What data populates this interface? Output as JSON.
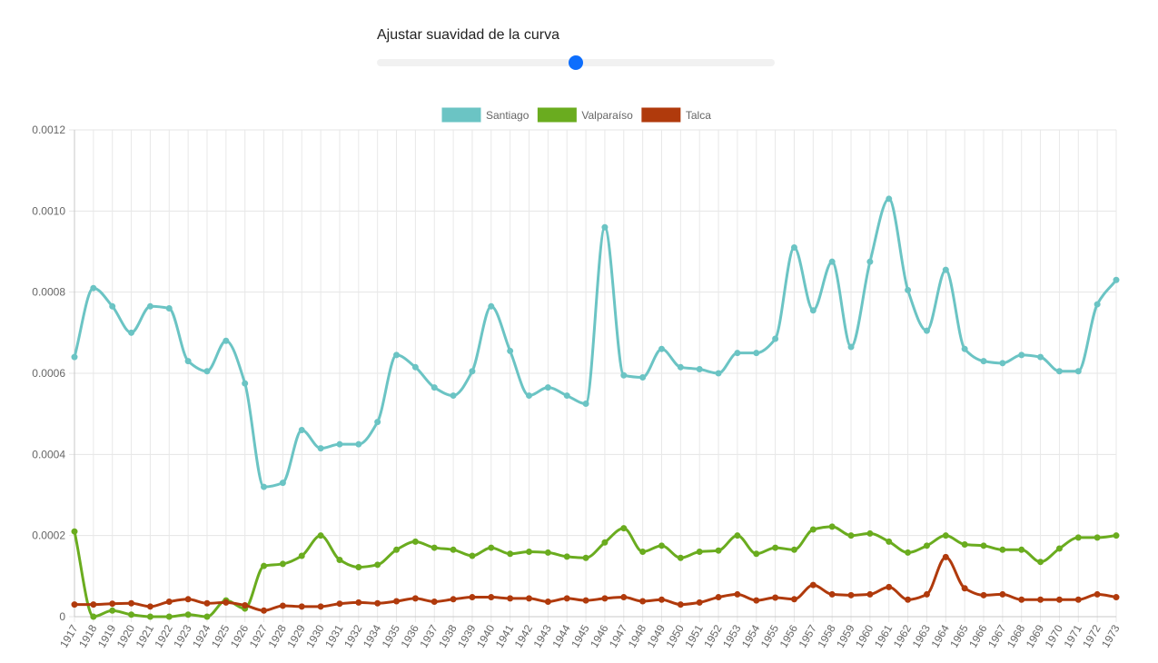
{
  "slider": {
    "label": "Ajustar suavidad de la curva",
    "value": 0.5,
    "thumb_color": "#0d6efd",
    "track_color": "#f1f1f1"
  },
  "chart_data": {
    "type": "line",
    "smoothing": "spline",
    "legend_position": "top-center",
    "grid": true,
    "ylim": [
      0,
      0.0012
    ],
    "y_ticks": [
      "0.0012",
      "0.0010",
      "0.0008",
      "0.0006",
      "0.0004",
      "0.0002",
      "0"
    ],
    "x": [
      "1917",
      "1918",
      "1919",
      "1920",
      "1921",
      "1922",
      "1923",
      "1924",
      "1925",
      "1926",
      "1927",
      "1928",
      "1929",
      "1930",
      "1931",
      "1932",
      "1934",
      "1935",
      "1936",
      "1937",
      "1938",
      "1939",
      "1940",
      "1941",
      "1942",
      "1943",
      "1944",
      "1945",
      "1946",
      "1947",
      "1948",
      "1949",
      "1950",
      "1951",
      "1952",
      "1953",
      "1954",
      "1955",
      "1956",
      "1957",
      "1958",
      "1959",
      "1960",
      "1961",
      "1962",
      "1963",
      "1964",
      "1965",
      "1966",
      "1967",
      "1968",
      "1969",
      "1970",
      "1971",
      "1972",
      "1973"
    ],
    "series": [
      {
        "name": "Santiago",
        "color": "#6bc4c4",
        "values": [
          0.00064,
          0.00081,
          0.000765,
          0.0007,
          0.000765,
          0.00076,
          0.00063,
          0.000605,
          0.00068,
          0.000575,
          0.00032,
          0.00033,
          0.00046,
          0.000415,
          0.000425,
          0.000425,
          0.00048,
          0.000645,
          0.000615,
          0.000565,
          0.000545,
          0.000605,
          0.000765,
          0.000655,
          0.000545,
          0.000565,
          0.000545,
          0.000525,
          0.00096,
          0.000595,
          0.00059,
          0.00066,
          0.000615,
          0.00061,
          0.0006,
          0.00065,
          0.00065,
          0.000685,
          0.00091,
          0.000755,
          0.000875,
          0.000665,
          0.000875,
          0.00103,
          0.000805,
          0.000705,
          0.000855,
          0.00066,
          0.00063,
          0.000625,
          0.000645,
          0.00064,
          0.000605,
          0.000605,
          0.00077,
          0.00083
        ]
      },
      {
        "name": "Valparaíso",
        "color": "#6aac1f",
        "values": [
          0.00021,
          0.0,
          1.5e-05,
          5e-06,
          0.0,
          0.0,
          5e-06,
          0.0,
          4e-05,
          2e-05,
          0.000125,
          0.00013,
          0.00015,
          0.0002,
          0.00014,
          0.000122,
          0.000128,
          0.000165,
          0.000185,
          0.00017,
          0.000165,
          0.00015,
          0.00017,
          0.000155,
          0.00016,
          0.000158,
          0.000148,
          0.000145,
          0.000183,
          0.000218,
          0.00016,
          0.000175,
          0.000145,
          0.00016,
          0.000163,
          0.0002,
          0.000155,
          0.00017,
          0.000165,
          0.000215,
          0.000222,
          0.0002,
          0.000205,
          0.000185,
          0.000158,
          0.000175,
          0.0002,
          0.000178,
          0.000175,
          0.000165,
          0.000165,
          0.000135,
          0.000168,
          0.000195,
          0.000195,
          0.0002
        ]
      },
      {
        "name": "Talca",
        "color": "#b03a0c",
        "values": [
          3e-05,
          3e-05,
          3.2e-05,
          3.3e-05,
          2.5e-05,
          3.7e-05,
          4.3e-05,
          3.3e-05,
          3.5e-05,
          2.8e-05,
          1.5e-05,
          2.7e-05,
          2.5e-05,
          2.5e-05,
          3.2e-05,
          3.5e-05,
          3.3e-05,
          3.8e-05,
          4.5e-05,
          3.7e-05,
          4.3e-05,
          4.8e-05,
          4.8e-05,
          4.5e-05,
          4.5e-05,
          3.7e-05,
          4.5e-05,
          4e-05,
          4.5e-05,
          4.8e-05,
          3.8e-05,
          4.2e-05,
          3e-05,
          3.5e-05,
          4.8e-05,
          5.5e-05,
          4e-05,
          4.7e-05,
          4.3e-05,
          7.8e-05,
          5.5e-05,
          5.3e-05,
          5.5e-05,
          7.3e-05,
          4.2e-05,
          5.5e-05,
          0.000147,
          7e-05,
          5.3e-05,
          5.5e-05,
          4.2e-05,
          4.2e-05,
          4.2e-05,
          4.2e-05,
          5.5e-05,
          4.8e-05
        ]
      }
    ]
  }
}
